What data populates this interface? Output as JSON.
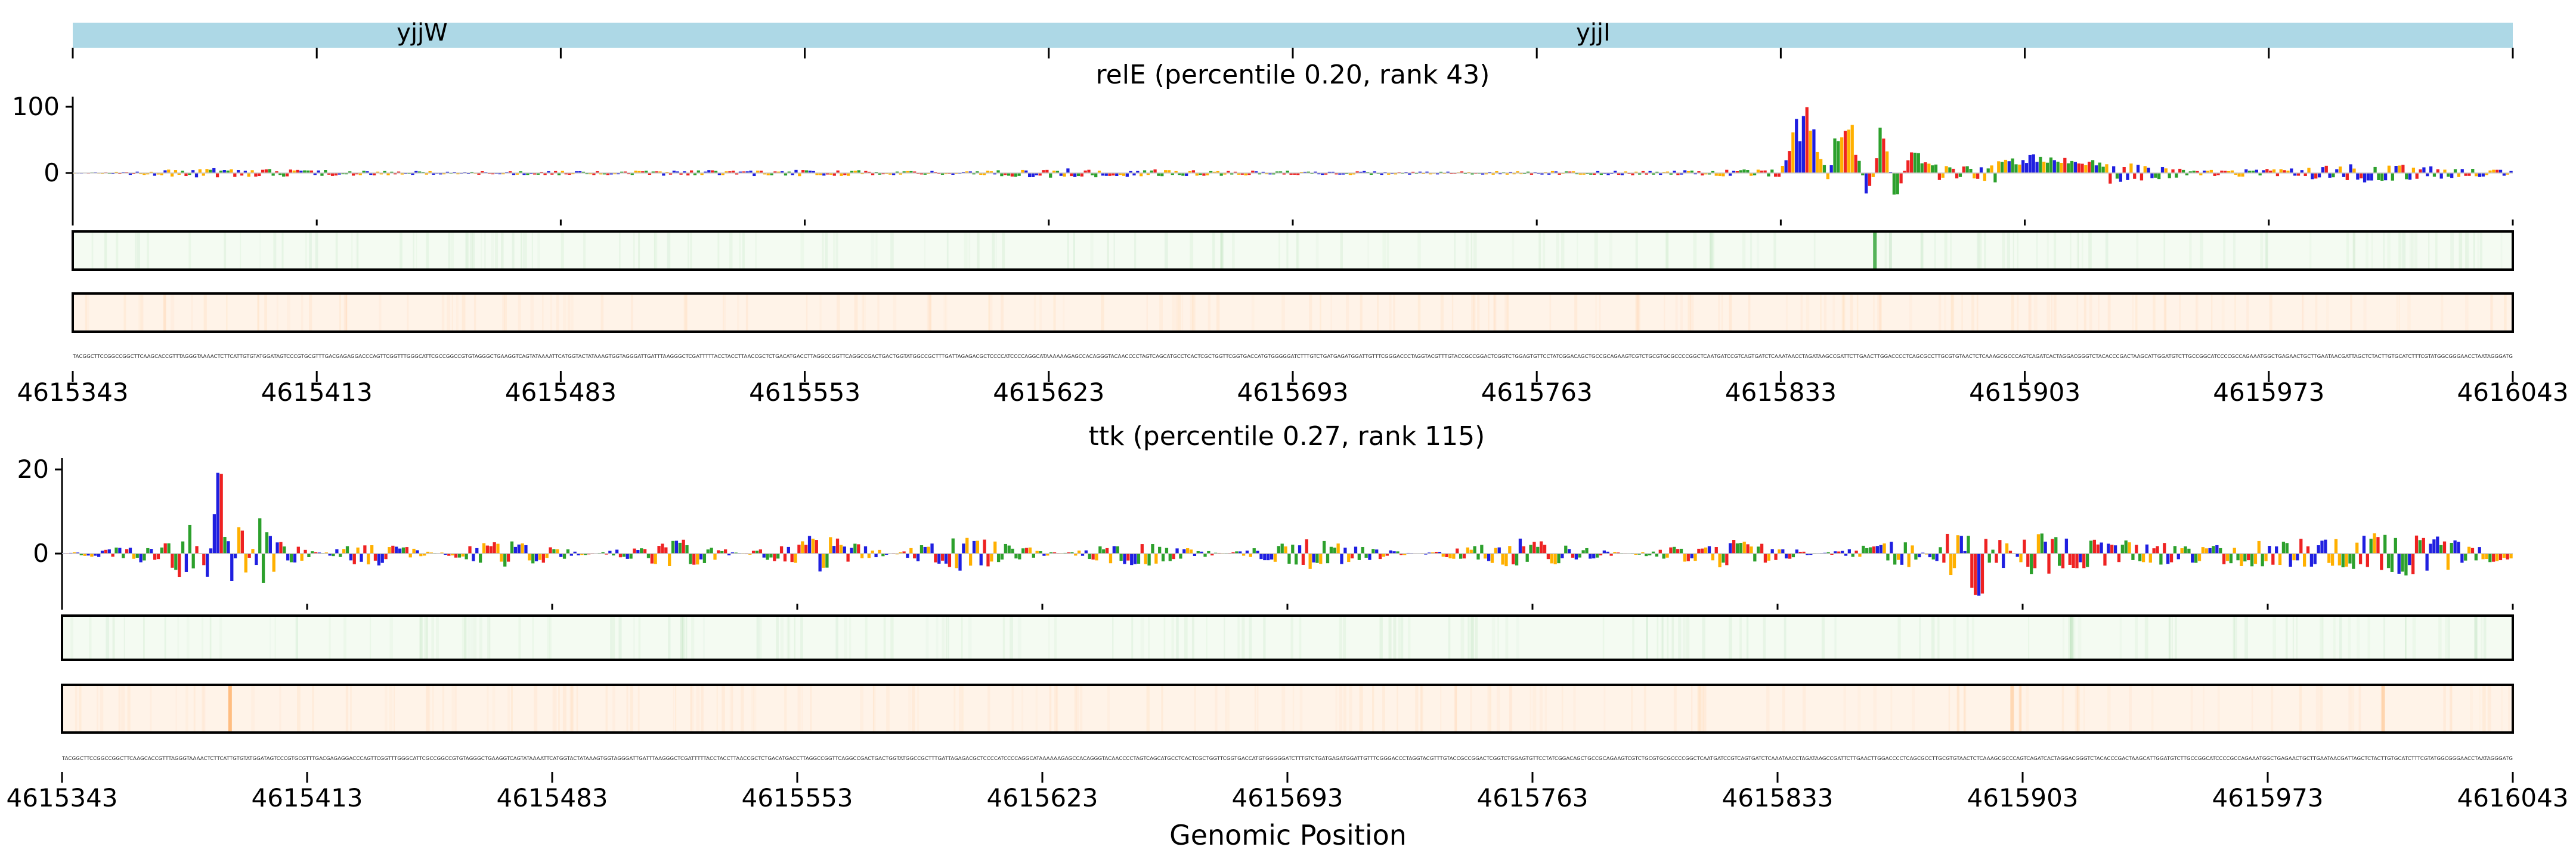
{
  "annotation_track": {
    "genes": [
      {
        "name": "yjjW",
        "start": 4615343,
        "end": 4615653
      },
      {
        "name": "yjjI",
        "start": 4615653,
        "end": 4616043
      }
    ],
    "color": "#add8e6"
  },
  "colors": {
    "A": "#2ca02c",
    "C": "#1f1fe0",
    "G": "#ffb000",
    "T": "#ee2222",
    "strip_top_bg": "#f4fbf2",
    "strip_top_mark": "#4caf50",
    "strip_bottom_bg": "#fff3e8",
    "strip_bottom_mark": "#ff9a3c"
  },
  "x_ticks": [
    "4615343",
    "4615413",
    "4615483",
    "4615553",
    "4615623",
    "4615693",
    "4615763",
    "4615833",
    "4615903",
    "4615973",
    "4616043"
  ],
  "xlabel": "Genomic Position",
  "chart_data": [
    {
      "type": "line",
      "title": "relE (percentile 0.20, rank 43)",
      "x_range": [
        4615343,
        4616043
      ],
      "ylim": [
        -70,
        105
      ],
      "yticks": [
        "0",
        "100"
      ],
      "ytick_values": [
        0,
        100
      ],
      "series": [
        {
          "x": [
            4615343,
            4615383,
            4615410,
            4615450,
            4615500,
            4615553,
            4615600,
            4615620,
            4615680,
            4615740,
            4615800,
            4615833,
            4615838,
            4615842,
            4615846,
            4615850,
            4615854,
            4615858,
            4615862,
            4615866,
            4615870,
            4615878,
            4615890,
            4615905,
            4615910,
            4615920,
            4615950,
            4615980,
            4616000,
            4616043
          ],
          "values": [
            0,
            6,
            4,
            2,
            3,
            4,
            2,
            6,
            3,
            2,
            3,
            5,
            85,
            100,
            -30,
            95,
            60,
            -45,
            90,
            -50,
            35,
            10,
            8,
            25,
            22,
            18,
            4,
            6,
            12,
            4
          ]
        }
      ],
      "strip_peaks": [
        {
          "track": "top",
          "x": 4615860,
          "intensity": 0.95
        }
      ]
    },
    {
      "type": "line",
      "title": "ttk (percentile 0.27, rank 115)",
      "x_range": [
        4615343,
        4616043
      ],
      "ylim": [
        -12,
        23
      ],
      "yticks": [
        "0",
        "20"
      ],
      "ytick_values": [
        0,
        20
      ],
      "series": [
        {
          "x": [
            4615343,
            4615370,
            4615380,
            4615385,
            4615388,
            4615391,
            4615394,
            4615397,
            4615400,
            4615405,
            4615430,
            4615470,
            4615520,
            4615560,
            4615600,
            4615650,
            4615700,
            4615760,
            4615820,
            4615870,
            4615885,
            4615888,
            4615891,
            4615896,
            4615905,
            4615915,
            4615950,
            4615990,
            4616010,
            4616043
          ],
          "values": [
            0,
            2,
            6,
            -6,
            21,
            -9,
            12,
            -4,
            9,
            3,
            -3,
            3,
            -3,
            4,
            -4,
            3,
            -3,
            3,
            -3,
            3,
            -6,
            8,
            9,
            -5,
            5,
            3,
            2,
            3,
            5,
            1
          ]
        }
      ],
      "strip_peaks": [
        {
          "track": "bottom",
          "x": 4615391,
          "intensity": 0.6
        },
        {
          "track": "top",
          "x": 4615917,
          "intensity": 0.2
        },
        {
          "track": "bottom",
          "x": 4615900,
          "intensity": 0.3
        },
        {
          "track": "bottom",
          "x": 4616006,
          "intensity": 0.3
        }
      ]
    }
  ]
}
